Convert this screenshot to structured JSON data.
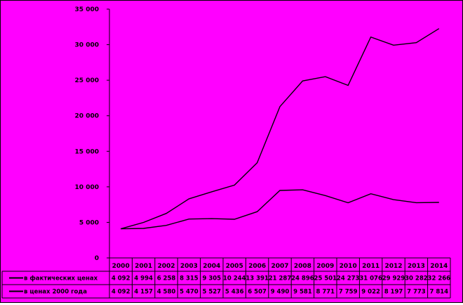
{
  "chart_data": {
    "type": "line",
    "background": "#FF00FF",
    "line_color": "#000000",
    "grid": false,
    "legend": "data-table-left",
    "categories": [
      "2000",
      "2001",
      "2002",
      "2003",
      "2004",
      "2005",
      "2006",
      "2007",
      "2008",
      "2009",
      "2010",
      "2011",
      "2012",
      "2013",
      "2014"
    ],
    "ylim": [
      0,
      35000
    ],
    "yticks": [
      0,
      5000,
      10000,
      15000,
      20000,
      25000,
      30000,
      35000
    ],
    "ytick_labels": [
      "0",
      "5 000",
      "10 000",
      "15 000",
      "20 000",
      "25 000",
      "30 000",
      "35 000"
    ],
    "series": [
      {
        "name": "в фактических ценах",
        "values": [
          4092,
          4994,
          6258,
          8315,
          9305,
          10244,
          13391,
          21287,
          24896,
          25501,
          24273,
          31076,
          29929,
          30282,
          32266
        ],
        "labels": [
          "4 092",
          "4 994",
          "6 258",
          "8 315",
          "9 305",
          "10 244",
          "13 391",
          "21 287",
          "24 896",
          "25 501",
          "24 273",
          "31 076",
          "29 929",
          "30 282",
          "32 266"
        ]
      },
      {
        "name": "в ценах 2000 года",
        "values": [
          4092,
          4157,
          4580,
          5470,
          5527,
          5436,
          6507,
          9490,
          9581,
          8771,
          7759,
          9022,
          8197,
          7773,
          7814
        ],
        "labels": [
          "4 092",
          "4 157",
          "4 580",
          "5 470",
          "5 527",
          "5 436",
          "6 507",
          "9 490",
          "9 581",
          "8 771",
          "7 759",
          "9 022",
          "8 197",
          "7 773",
          "7 814"
        ]
      }
    ]
  }
}
